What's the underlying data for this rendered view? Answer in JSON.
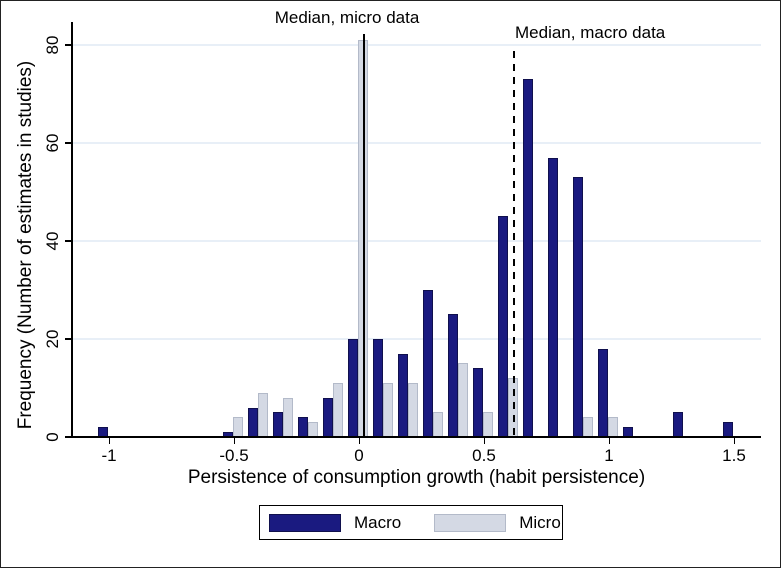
{
  "chart_data": {
    "type": "bar",
    "title": "",
    "xlabel": "Persistence of consumption growth (habit persistence)",
    "ylabel": "Frequency (Number of estimates in studies)",
    "bin_width": 0.1,
    "categories": [
      -1,
      -0.5,
      -0.4,
      -0.3,
      -0.2,
      -0.1,
      0,
      0.1,
      0.2,
      0.3,
      0.4,
      0.5,
      0.6,
      0.7,
      0.8,
      0.9,
      1,
      1.1,
      1.3,
      1.5
    ],
    "series": [
      {
        "name": "Macro",
        "color": "#1a1a80",
        "values": [
          2,
          1,
          6,
          5,
          4,
          8,
          20,
          20,
          17,
          30,
          25,
          14,
          45,
          73,
          57,
          53,
          18,
          2,
          5,
          3
        ]
      },
      {
        "name": "Micro",
        "color": "#d4d9e4",
        "values": [
          0,
          4,
          9,
          8,
          3,
          11,
          81,
          11,
          11,
          5,
          15,
          5,
          12,
          0,
          0,
          4,
          4,
          0,
          0,
          0
        ]
      }
    ],
    "xticks": [
      -1,
      -0.5,
      0,
      0.5,
      1,
      1.5
    ],
    "xtick_labels": [
      "-1",
      "-0.5",
      "0",
      "0.5",
      "1",
      "1.5"
    ],
    "yticks": [
      0,
      20,
      40,
      60,
      80
    ],
    "ytick_labels": [
      "0",
      "20",
      "40",
      "60",
      "80"
    ],
    "ylim": [
      0,
      81
    ],
    "xlim": [
      -1.15,
      1.6
    ],
    "grid": "horizontal-light",
    "legend_position": "bottom-center",
    "annotations": [
      {
        "id": "median-micro",
        "label": "Median, micro data",
        "x": 0.02,
        "line_style": "solid"
      },
      {
        "id": "median-macro",
        "label": "Median, macro data",
        "x": 0.62,
        "line_style": "dashed"
      }
    ]
  },
  "colors": {
    "macro_bar": "#1a1a80",
    "macro_bar_border": "#10104d",
    "micro_bar": "#d4d9e4",
    "micro_bar_border": "#b3bac9",
    "gridline": "#e8eff7",
    "axis": "#000000",
    "median_line": "#000000",
    "background": "#ffffff"
  },
  "legend": {
    "items": [
      {
        "label": "Macro",
        "color": "#1a1a80"
      },
      {
        "label": "Micro",
        "color": "#d4d9e4"
      }
    ]
  }
}
